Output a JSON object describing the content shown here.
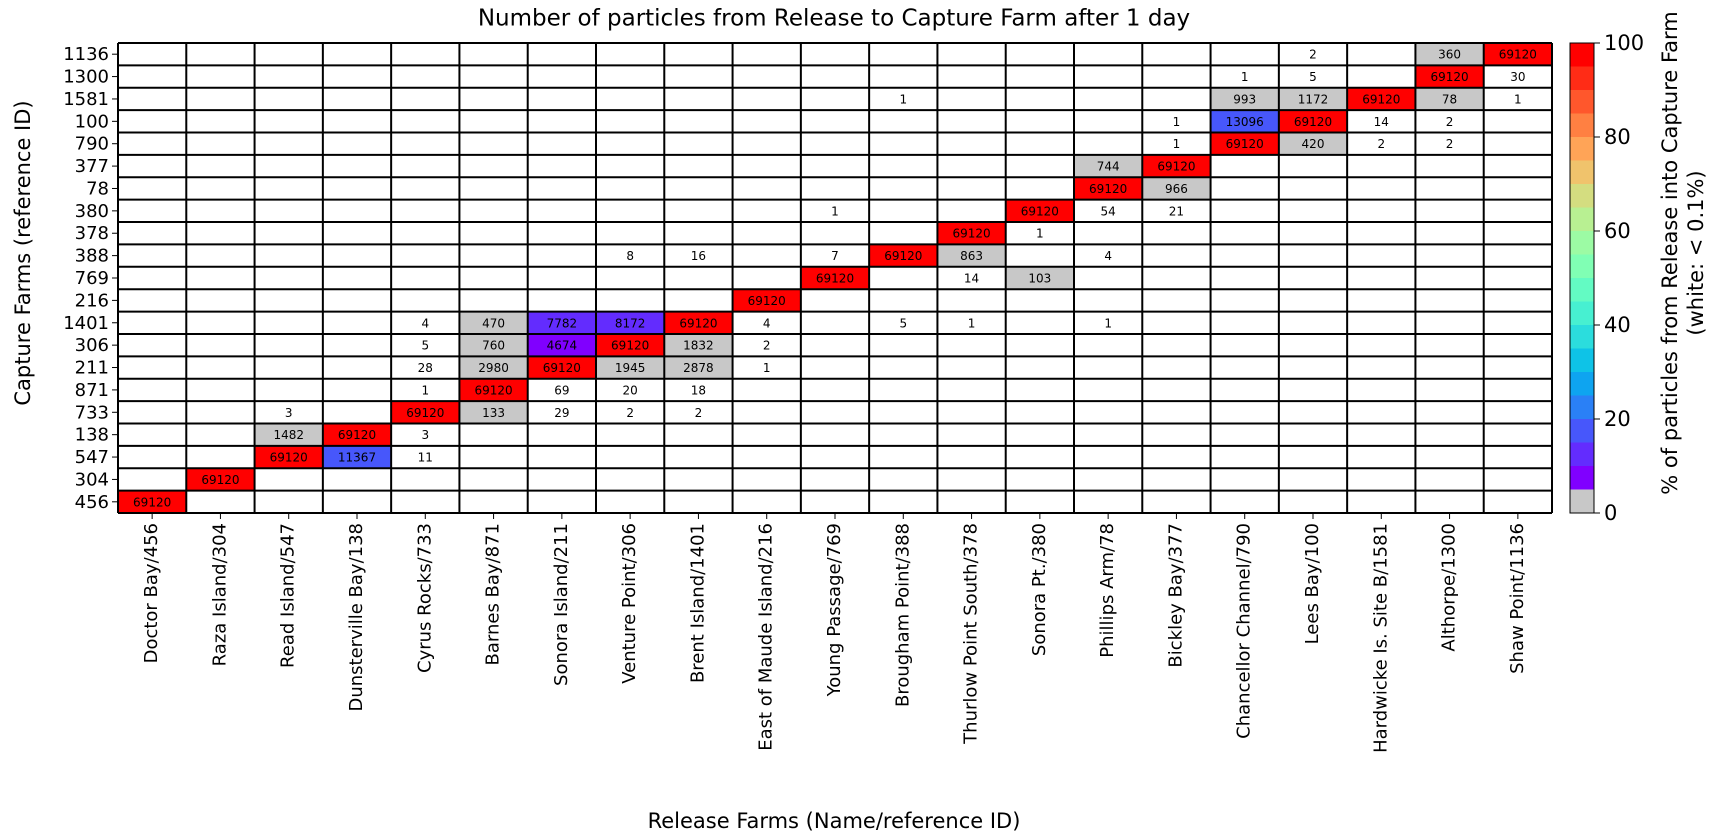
{
  "chart_data": {
    "type": "heatmap",
    "title": "Number of particles from Release to Capture Farm after 1 day",
    "xlabel": "Release Farms (Name/reference ID)",
    "ylabel": "Capture Farms (reference ID)",
    "colorbar_label": [
      "% of particles from Release into Capture Farm",
      "(white: < 0.1%)"
    ],
    "white_below": 0.1,
    "clim": [
      0,
      100
    ],
    "cticks": [
      0,
      20,
      40,
      60,
      80,
      100
    ],
    "colors": [
      "#c8c8c8",
      "#8000ff",
      "#632cfe",
      "#4757fb",
      "#2a80f6",
      "#0ea4f0",
      "#0ec3e7",
      "#2bdddd",
      "#47f0d1",
      "#63fbc3",
      "#80ffb4",
      "#9cfba4",
      "#b8f092",
      "#d4dd80",
      "#f0c36c",
      "#ffa457",
      "#ff8042",
      "#ff572c",
      "#ff2c16",
      "#ff0000"
    ],
    "x": [
      "Doctor Bay/456",
      "Raza Island/304",
      "Read Island/547",
      "Dunsterville Bay/138",
      "Cyrus Rocks/733",
      "Barnes Bay/871",
      "Sonora Island/211",
      "Venture Point/306",
      "Brent Island/1401",
      "East of Maude Island/216",
      "Young Passage/769",
      "Brougham Point/388",
      "Thurlow Point South/378",
      "Sonora Pt./380",
      "Phillips Arm/78",
      "Bickley Bay/377",
      "Chancellor Channel/790",
      "Lees Bay/100",
      "Hardwicke Is. Site B/1581",
      "Althorpe/1300",
      "Shaw Point/1136"
    ],
    "y": [
      "1136",
      "1300",
      "1581",
      "100",
      "790",
      "377",
      "78",
      "380",
      "378",
      "388",
      "769",
      "216",
      "1401",
      "306",
      "211",
      "871",
      "733",
      "138",
      "547",
      "304",
      "456"
    ],
    "values": [
      [
        null,
        null,
        null,
        null,
        null,
        null,
        null,
        null,
        null,
        null,
        null,
        null,
        null,
        null,
        null,
        null,
        null,
        2,
        null,
        360,
        69120
      ],
      [
        null,
        null,
        null,
        null,
        null,
        null,
        null,
        null,
        null,
        null,
        null,
        null,
        null,
        null,
        null,
        null,
        1,
        5,
        null,
        69120,
        30
      ],
      [
        null,
        null,
        null,
        null,
        null,
        null,
        null,
        null,
        null,
        null,
        null,
        1,
        null,
        null,
        null,
        null,
        993,
        1172,
        69120,
        78,
        1
      ],
      [
        null,
        null,
        null,
        null,
        null,
        null,
        null,
        null,
        null,
        null,
        null,
        null,
        null,
        null,
        null,
        1,
        13096,
        69120,
        14,
        2,
        null
      ],
      [
        null,
        null,
        null,
        null,
        null,
        null,
        null,
        null,
        null,
        null,
        null,
        null,
        null,
        null,
        null,
        1,
        69120,
        420,
        2,
        2,
        null
      ],
      [
        null,
        null,
        null,
        null,
        null,
        null,
        null,
        null,
        null,
        null,
        null,
        null,
        null,
        null,
        744,
        69120,
        null,
        null,
        null,
        null,
        null
      ],
      [
        null,
        null,
        null,
        null,
        null,
        null,
        null,
        null,
        null,
        null,
        null,
        null,
        null,
        null,
        69120,
        966,
        null,
        null,
        null,
        null,
        null
      ],
      [
        null,
        null,
        null,
        null,
        null,
        null,
        null,
        null,
        null,
        null,
        1,
        null,
        null,
        69120,
        54,
        21,
        null,
        null,
        null,
        null,
        null
      ],
      [
        null,
        null,
        null,
        null,
        null,
        null,
        null,
        null,
        null,
        null,
        null,
        null,
        69120,
        1,
        null,
        null,
        null,
        null,
        null,
        null,
        null
      ],
      [
        null,
        null,
        null,
        null,
        null,
        null,
        null,
        8,
        16,
        null,
        7,
        69120,
        863,
        null,
        4,
        null,
        null,
        null,
        null,
        null,
        null
      ],
      [
        null,
        null,
        null,
        null,
        null,
        null,
        null,
        null,
        null,
        null,
        69120,
        null,
        14,
        103,
        null,
        null,
        null,
        null,
        null,
        null,
        null
      ],
      [
        null,
        null,
        null,
        null,
        null,
        null,
        null,
        null,
        null,
        69120,
        null,
        null,
        null,
        null,
        null,
        null,
        null,
        null,
        null,
        null,
        null
      ],
      [
        null,
        null,
        null,
        null,
        4,
        470,
        7782,
        8172,
        69120,
        4,
        null,
        5,
        1,
        null,
        1,
        null,
        null,
        null,
        null,
        null,
        null
      ],
      [
        null,
        null,
        null,
        null,
        5,
        760,
        4674,
        69120,
        1832,
        2,
        null,
        null,
        null,
        null,
        null,
        null,
        null,
        null,
        null,
        null,
        null
      ],
      [
        null,
        null,
        null,
        null,
        28,
        2980,
        69120,
        1945,
        2878,
        1,
        null,
        null,
        null,
        null,
        null,
        null,
        null,
        null,
        null,
        null,
        null
      ],
      [
        null,
        null,
        null,
        null,
        1,
        69120,
        69,
        20,
        18,
        null,
        null,
        null,
        null,
        null,
        null,
        null,
        null,
        null,
        null,
        null,
        null
      ],
      [
        null,
        null,
        3,
        null,
        69120,
        133,
        29,
        2,
        2,
        null,
        null,
        null,
        null,
        null,
        null,
        null,
        null,
        null,
        null,
        null,
        null
      ],
      [
        null,
        null,
        1482,
        69120,
        3,
        null,
        null,
        null,
        null,
        null,
        null,
        null,
        null,
        null,
        null,
        null,
        null,
        null,
        null,
        null,
        null
      ],
      [
        null,
        null,
        69120,
        11367,
        11,
        null,
        null,
        null,
        null,
        null,
        null,
        null,
        null,
        null,
        null,
        null,
        null,
        null,
        null,
        null,
        null
      ],
      [
        null,
        69120,
        null,
        null,
        null,
        null,
        null,
        null,
        null,
        null,
        null,
        null,
        null,
        null,
        null,
        null,
        null,
        null,
        null,
        null,
        null
      ],
      [
        69120,
        null,
        null,
        null,
        null,
        null,
        null,
        null,
        null,
        null,
        null,
        null,
        null,
        null,
        null,
        null,
        null,
        null,
        null,
        null,
        null
      ]
    ]
  }
}
